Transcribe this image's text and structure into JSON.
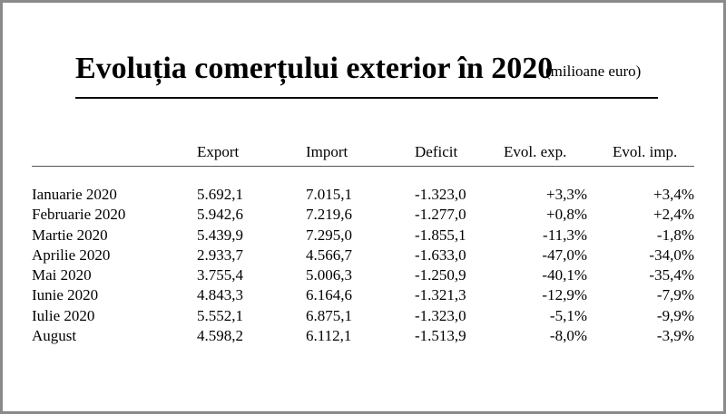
{
  "title": {
    "main": "Evoluția comerțului exterior în 2020",
    "unit": "(milioane euro)"
  },
  "table": {
    "headers": [
      "Export",
      "Import",
      "Deficit",
      "Evol. exp.",
      "Evol. imp."
    ],
    "rows": [
      {
        "month": "Ianuarie 2020",
        "export": "5.692,1",
        "import": "7.015,1",
        "deficit": "-1.323,0",
        "evol_exp": "+3,3%",
        "evol_imp": "+3,4%"
      },
      {
        "month": "Februarie 2020",
        "export": "5.942,6",
        "import": "7.219,6",
        "deficit": "-1.277,0",
        "evol_exp": "+0,8%",
        "evol_imp": "+2,4%"
      },
      {
        "month": "Martie 2020",
        "export": "5.439,9",
        "import": "7.295,0",
        "deficit": "-1.855,1",
        "evol_exp": "-11,3%",
        "evol_imp": "-1,8%"
      },
      {
        "month": "Aprilie 2020",
        "export": "2.933,7",
        "import": "4.566,7",
        "deficit": "-1.633,0",
        "evol_exp": "-47,0%",
        "evol_imp": "-34,0%"
      },
      {
        "month": "Mai 2020",
        "export": "3.755,4",
        "import": "5.006,3",
        "deficit": "-1.250,9",
        "evol_exp": "-40,1%",
        "evol_imp": "-35,4%"
      },
      {
        "month": "Iunie 2020",
        "export": "4.843,3",
        "import": "6.164,6",
        "deficit": "-1.321,3",
        "evol_exp": "-12,9%",
        "evol_imp": "-7,9%"
      },
      {
        "month": "Iulie 2020",
        "export": "5.552,1",
        "import": "6.875,1",
        "deficit": "-1.323,0",
        "evol_exp": "-5,1%",
        "evol_imp": "-9,9%"
      },
      {
        "month": "August",
        "export": "4.598,2",
        "import": "6.112,1",
        "deficit": "-1.513,9",
        "evol_exp": "-8,0%",
        "evol_imp": "-3,9%"
      }
    ]
  }
}
